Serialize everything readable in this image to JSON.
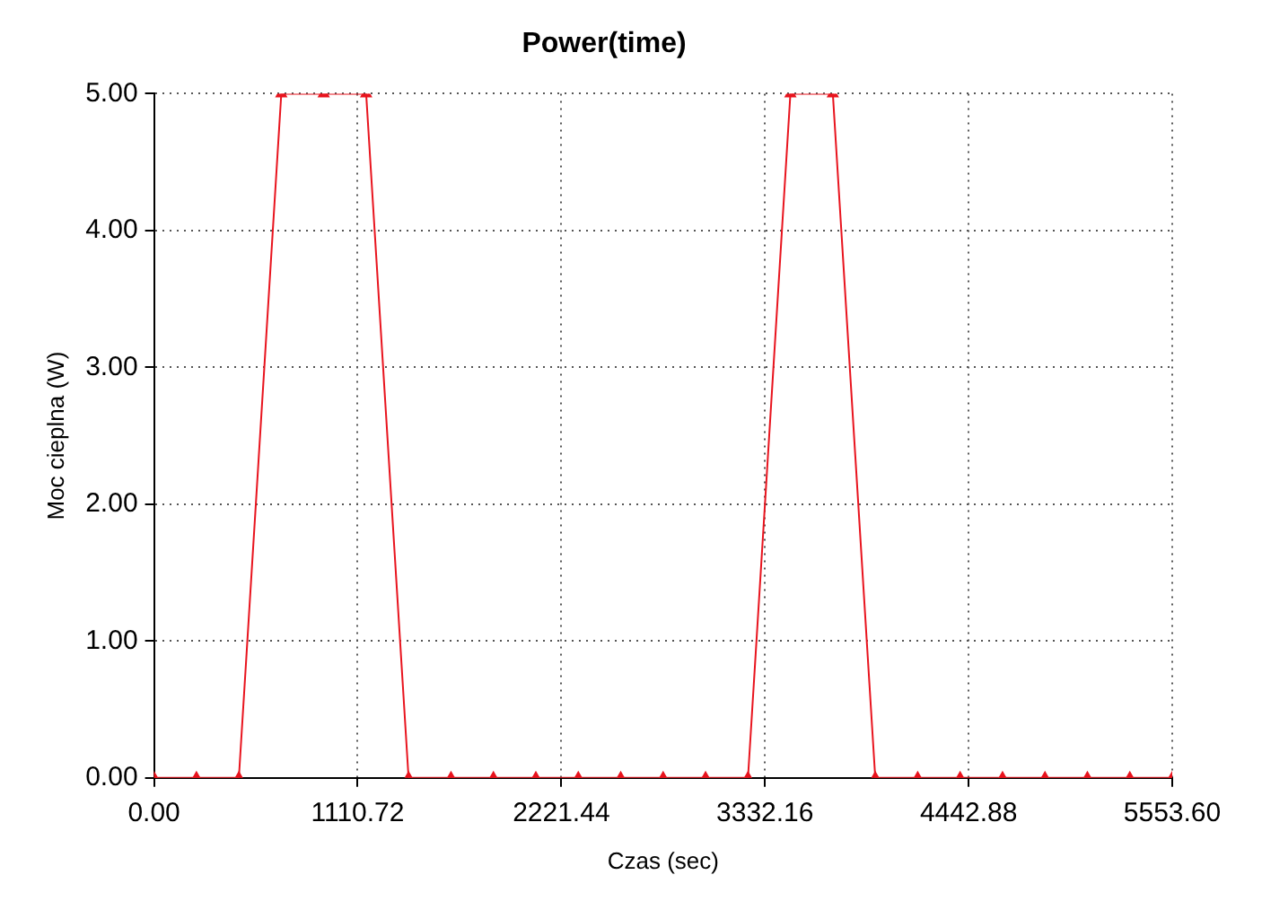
{
  "chart_data": {
    "type": "line",
    "title": "Power(time)",
    "xlabel": "Czas (sec)",
    "ylabel": "Moc cieplna (W)",
    "x": [
      0,
      231.4,
      462.8,
      694.2,
      925.6,
      1157,
      1388.4,
      1619.8,
      1851.2,
      2082.6,
      2314,
      2545.4,
      2776.8,
      3008.2,
      3239.6,
      3471,
      3702.4,
      3933.8,
      4165.2,
      4396.6,
      4628,
      4859.4,
      5090.8,
      5322.2,
      5553.6
    ],
    "series": [
      {
        "color": "#e8141e",
        "values": [
          0,
          0,
          0,
          5,
          5,
          5,
          0,
          0,
          0,
          0,
          0,
          0,
          0,
          0,
          0,
          5,
          5,
          0,
          0,
          0,
          0,
          0,
          0,
          0,
          0
        ]
      }
    ],
    "xlim": [
      0,
      5553.6
    ],
    "xticks": [
      {
        "value": 0,
        "label": "0.00"
      },
      {
        "value": 1110.72,
        "label": "1110.72"
      },
      {
        "value": 2221.44,
        "label": "2221.44"
      },
      {
        "value": 3332.16,
        "label": "3332.16"
      },
      {
        "value": 4442.88,
        "label": "4442.88"
      },
      {
        "value": 5553.6,
        "label": "5553.60"
      }
    ],
    "ylim": [
      0,
      5
    ],
    "yticks": [
      {
        "value": 0,
        "label": "0.00"
      },
      {
        "value": 1,
        "label": "1.00"
      },
      {
        "value": 2,
        "label": "2.00"
      },
      {
        "value": 3,
        "label": "3.00"
      },
      {
        "value": 4,
        "label": "4.00"
      },
      {
        "value": 5,
        "label": "5.00"
      }
    ],
    "grid": true,
    "marker": "triangle",
    "line_style": "solid"
  }
}
